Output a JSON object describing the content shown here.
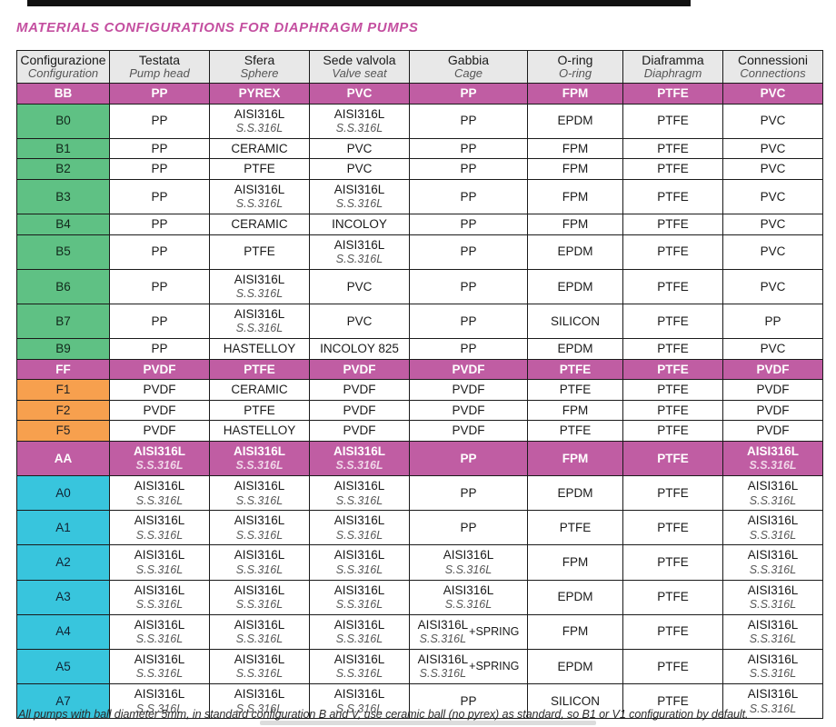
{
  "page": {
    "title": "MATERIALS CONFIGURATIONS FOR DIAPHRAGM PUMPS",
    "footer_note": "All pumps with ball diameter 5mm, in standard configuration B and V, use ceramic ball (no pyrex) as standard, so B1 or V1 configuration by default."
  },
  "colors": {
    "highlight_magenta": "#c05da3",
    "title_magenta": "#c44fa0",
    "config_green": "#5fc184",
    "config_orange": "#f7a04e",
    "config_cyan": "#38c5dd",
    "header_gray": "#e8e8e8",
    "border_black": "#1a1a1a"
  },
  "table": {
    "columns": [
      {
        "it": "Configurazione",
        "en": "Configuration"
      },
      {
        "it": "Testata",
        "en": "Pump head"
      },
      {
        "it": "Sfera",
        "en": "Sphere"
      },
      {
        "it": "Sede valvola",
        "en": "Valve seat"
      },
      {
        "it": "Gabbia",
        "en": "Cage"
      },
      {
        "it": "O-ring",
        "en": "O-ring"
      },
      {
        "it": "Diaframma",
        "en": "Diaphragm"
      },
      {
        "it": "Connessioni",
        "en": "Connections"
      }
    ],
    "rows": [
      {
        "config": "BB",
        "type": "highlight",
        "cells": [
          {
            "m": "PP"
          },
          {
            "m": "PYREX"
          },
          {
            "m": "PVC"
          },
          {
            "m": "PP"
          },
          {
            "m": "FPM"
          },
          {
            "m": "PTFE"
          },
          {
            "m": "PVC"
          }
        ]
      },
      {
        "config": "B0",
        "type": "green",
        "cells": [
          {
            "m": "PP"
          },
          {
            "m": "AISI316L",
            "s": "S.S.316L"
          },
          {
            "m": "AISI316L",
            "s": "S.S.316L"
          },
          {
            "m": "PP"
          },
          {
            "m": "EPDM"
          },
          {
            "m": "PTFE"
          },
          {
            "m": "PVC"
          }
        ]
      },
      {
        "config": "B1",
        "type": "green",
        "cells": [
          {
            "m": "PP"
          },
          {
            "m": "CERAMIC"
          },
          {
            "m": "PVC"
          },
          {
            "m": "PP"
          },
          {
            "m": "FPM"
          },
          {
            "m": "PTFE"
          },
          {
            "m": "PVC"
          }
        ]
      },
      {
        "config": "B2",
        "type": "green",
        "cells": [
          {
            "m": "PP"
          },
          {
            "m": "PTFE"
          },
          {
            "m": "PVC"
          },
          {
            "m": "PP"
          },
          {
            "m": "FPM"
          },
          {
            "m": "PTFE"
          },
          {
            "m": "PVC"
          }
        ]
      },
      {
        "config": "B3",
        "type": "green",
        "cells": [
          {
            "m": "PP"
          },
          {
            "m": "AISI316L",
            "s": "S.S.316L"
          },
          {
            "m": "AISI316L",
            "s": "S.S.316L"
          },
          {
            "m": "PP"
          },
          {
            "m": "FPM"
          },
          {
            "m": "PTFE"
          },
          {
            "m": "PVC"
          }
        ]
      },
      {
        "config": "B4",
        "type": "green",
        "cells": [
          {
            "m": "PP"
          },
          {
            "m": "CERAMIC"
          },
          {
            "m": "INCOLOY"
          },
          {
            "m": "PP"
          },
          {
            "m": "FPM"
          },
          {
            "m": "PTFE"
          },
          {
            "m": "PVC"
          }
        ]
      },
      {
        "config": "B5",
        "type": "green",
        "cells": [
          {
            "m": "PP"
          },
          {
            "m": "PTFE"
          },
          {
            "m": "AISI316L",
            "s": "S.S.316L"
          },
          {
            "m": "PP"
          },
          {
            "m": "EPDM"
          },
          {
            "m": "PTFE"
          },
          {
            "m": "PVC"
          }
        ]
      },
      {
        "config": "B6",
        "type": "green",
        "cells": [
          {
            "m": "PP"
          },
          {
            "m": "AISI316L",
            "s": "S.S.316L"
          },
          {
            "m": "PVC"
          },
          {
            "m": "PP"
          },
          {
            "m": "EPDM"
          },
          {
            "m": "PTFE"
          },
          {
            "m": "PVC"
          }
        ]
      },
      {
        "config": "B7",
        "type": "green",
        "cells": [
          {
            "m": "PP"
          },
          {
            "m": "AISI316L",
            "s": "S.S.316L"
          },
          {
            "m": "PVC"
          },
          {
            "m": "PP"
          },
          {
            "m": "SILICON"
          },
          {
            "m": "PTFE"
          },
          {
            "m": "PP"
          }
        ]
      },
      {
        "config": "B9",
        "type": "green",
        "cells": [
          {
            "m": "PP"
          },
          {
            "m": "HASTELLOY"
          },
          {
            "m": "INCOLOY 825"
          },
          {
            "m": "PP"
          },
          {
            "m": "EPDM"
          },
          {
            "m": "PTFE"
          },
          {
            "m": "PVC"
          }
        ]
      },
      {
        "config": "FF",
        "type": "highlight",
        "cells": [
          {
            "m": "PVDF"
          },
          {
            "m": "PTFE"
          },
          {
            "m": "PVDF"
          },
          {
            "m": "PVDF"
          },
          {
            "m": "PTFE"
          },
          {
            "m": "PTFE"
          },
          {
            "m": "PVDF"
          }
        ]
      },
      {
        "config": "F1",
        "type": "orange",
        "cells": [
          {
            "m": "PVDF"
          },
          {
            "m": "CERAMIC"
          },
          {
            "m": "PVDF"
          },
          {
            "m": "PVDF"
          },
          {
            "m": "PTFE"
          },
          {
            "m": "PTFE"
          },
          {
            "m": "PVDF"
          }
        ]
      },
      {
        "config": "F2",
        "type": "orange",
        "cells": [
          {
            "m": "PVDF"
          },
          {
            "m": "PTFE"
          },
          {
            "m": "PVDF"
          },
          {
            "m": "PVDF"
          },
          {
            "m": "FPM"
          },
          {
            "m": "PTFE"
          },
          {
            "m": "PVDF"
          }
        ]
      },
      {
        "config": "F5",
        "type": "orange",
        "cells": [
          {
            "m": "PVDF"
          },
          {
            "m": "HASTELLOY"
          },
          {
            "m": "PVDF"
          },
          {
            "m": "PVDF"
          },
          {
            "m": "PTFE"
          },
          {
            "m": "PTFE"
          },
          {
            "m": "PVDF"
          }
        ]
      },
      {
        "config": "AA",
        "type": "highlight",
        "cells": [
          {
            "m": "AISI316L",
            "s": "S.S.316L"
          },
          {
            "m": "AISI316L",
            "s": "S.S.316L"
          },
          {
            "m": "AISI316L",
            "s": "S.S.316L"
          },
          {
            "m": "PP"
          },
          {
            "m": "FPM"
          },
          {
            "m": "PTFE"
          },
          {
            "m": "AISI316L",
            "s": "S.S.316L"
          }
        ]
      },
      {
        "config": "A0",
        "type": "cyan",
        "cells": [
          {
            "m": "AISI316L",
            "s": "S.S.316L"
          },
          {
            "m": "AISI316L",
            "s": "S.S.316L"
          },
          {
            "m": "AISI316L",
            "s": "S.S.316L"
          },
          {
            "m": "PP"
          },
          {
            "m": "EPDM"
          },
          {
            "m": "PTFE"
          },
          {
            "m": "AISI316L",
            "s": "S.S.316L"
          }
        ]
      },
      {
        "config": "A1",
        "type": "cyan",
        "cells": [
          {
            "m": "AISI316L",
            "s": "S.S.316L"
          },
          {
            "m": "AISI316L",
            "s": "S.S.316L"
          },
          {
            "m": "AISI316L",
            "s": "S.S.316L"
          },
          {
            "m": "PP"
          },
          {
            "m": "PTFE"
          },
          {
            "m": "PTFE"
          },
          {
            "m": "AISI316L",
            "s": "S.S.316L"
          }
        ]
      },
      {
        "config": "A2",
        "type": "cyan",
        "cells": [
          {
            "m": "AISI316L",
            "s": "S.S.316L"
          },
          {
            "m": "AISI316L",
            "s": "S.S.316L"
          },
          {
            "m": "AISI316L",
            "s": "S.S.316L"
          },
          {
            "m": "AISI316L",
            "s": "S.S.316L"
          },
          {
            "m": "FPM"
          },
          {
            "m": "PTFE"
          },
          {
            "m": "AISI316L",
            "s": "S.S.316L"
          }
        ]
      },
      {
        "config": "A3",
        "type": "cyan",
        "cells": [
          {
            "m": "AISI316L",
            "s": "S.S.316L"
          },
          {
            "m": "AISI316L",
            "s": "S.S.316L"
          },
          {
            "m": "AISI316L",
            "s": "S.S.316L"
          },
          {
            "m": "AISI316L",
            "s": "S.S.316L"
          },
          {
            "m": "EPDM"
          },
          {
            "m": "PTFE"
          },
          {
            "m": "AISI316L",
            "s": "S.S.316L"
          }
        ]
      },
      {
        "config": "A4",
        "type": "cyan",
        "cells": [
          {
            "m": "AISI316L",
            "s": "S.S.316L"
          },
          {
            "m": "AISI316L",
            "s": "S.S.316L"
          },
          {
            "m": "AISI316L",
            "s": "S.S.316L"
          },
          {
            "m": "AISI316L",
            "s": "S.S.316L",
            "x": "+SPRING"
          },
          {
            "m": "FPM"
          },
          {
            "m": "PTFE"
          },
          {
            "m": "AISI316L",
            "s": "S.S.316L"
          }
        ]
      },
      {
        "config": "A5",
        "type": "cyan",
        "cells": [
          {
            "m": "AISI316L",
            "s": "S.S.316L"
          },
          {
            "m": "AISI316L",
            "s": "S.S.316L"
          },
          {
            "m": "AISI316L",
            "s": "S.S.316L"
          },
          {
            "m": "AISI316L",
            "s": "S.S.316L",
            "x": "+SPRING"
          },
          {
            "m": "EPDM"
          },
          {
            "m": "PTFE"
          },
          {
            "m": "AISI316L",
            "s": "S.S.316L"
          }
        ]
      },
      {
        "config": "A7",
        "type": "cyan",
        "cells": [
          {
            "m": "AISI316L",
            "s": "S.S.316L"
          },
          {
            "m": "AISI316L",
            "s": "S.S.316L"
          },
          {
            "m": "AISI316L",
            "s": "S.S.316L"
          },
          {
            "m": "PP"
          },
          {
            "m": "SILICON"
          },
          {
            "m": "PTFE"
          },
          {
            "m": "AISI316L",
            "s": "S.S.316L"
          }
        ]
      }
    ]
  }
}
